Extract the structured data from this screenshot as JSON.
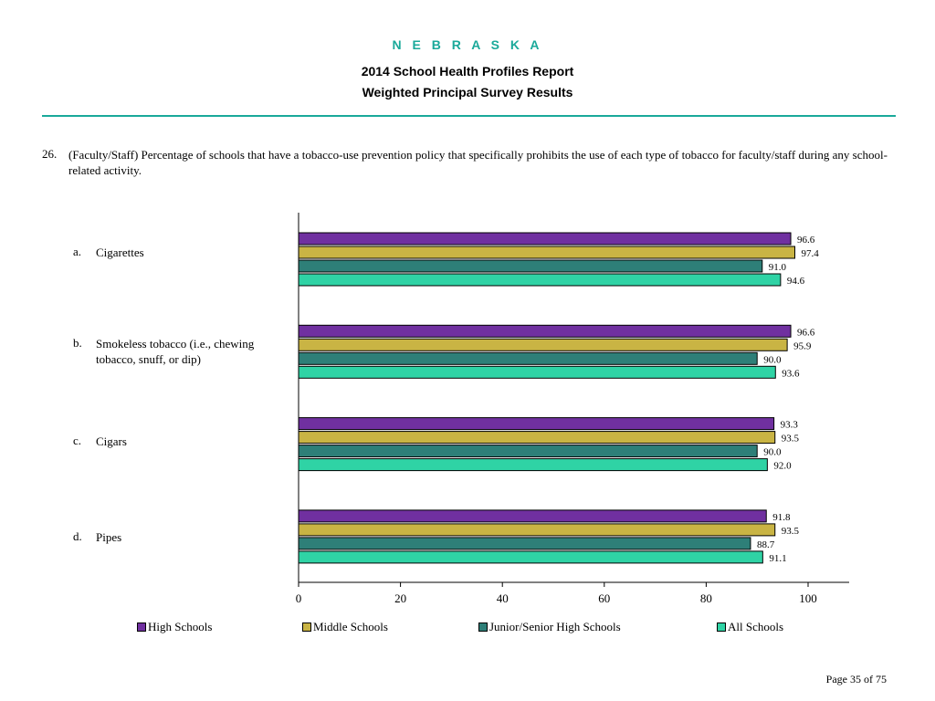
{
  "header": {
    "state": "N E B R A S K A",
    "report_title": "2014 School Health Profiles Report",
    "report_subtitle": "Weighted Principal Survey Results"
  },
  "question": {
    "number": "26.",
    "text": "(Faculty/Staff) Percentage of schools that have a tobacco-use prevention policy that specifically prohibits the use of each type of tobacco for faculty/staff during any school-related activity."
  },
  "category_items": [
    {
      "letter": "a.",
      "label": "Cigarettes"
    },
    {
      "letter": "b.",
      "label": "Smokeless tobacco (i.e., chewing tobacco, snuff, or dip)"
    },
    {
      "letter": "c.",
      "label": "Cigars"
    },
    {
      "letter": "d.",
      "label": "Pipes"
    }
  ],
  "chart_data": {
    "type": "bar",
    "orientation": "horizontal",
    "categories": [
      "Cigarettes",
      "Smokeless tobacco (i.e., chewing tobacco, snuff, or dip)",
      "Cigars",
      "Pipes"
    ],
    "series": [
      {
        "name": "High Schools",
        "color": "#7030a0",
        "values": [
          96.6,
          96.6,
          93.3,
          91.8
        ]
      },
      {
        "name": "Middle Schools",
        "color": "#c9b444",
        "values": [
          97.4,
          95.9,
          93.5,
          93.5
        ]
      },
      {
        "name": "Junior/Senior High Schools",
        "color": "#2e7f78",
        "values": [
          91.0,
          90.0,
          90.0,
          88.7
        ]
      },
      {
        "name": "All Schools",
        "color": "#2fd3a5",
        "values": [
          94.6,
          93.6,
          92.0,
          91.1
        ]
      }
    ],
    "xlim": [
      0,
      100
    ],
    "xticks": [
      0,
      20,
      40,
      60,
      80,
      100
    ],
    "legend_position": "bottom",
    "grid": false
  },
  "footer": {
    "page": "Page 35 of 75"
  }
}
